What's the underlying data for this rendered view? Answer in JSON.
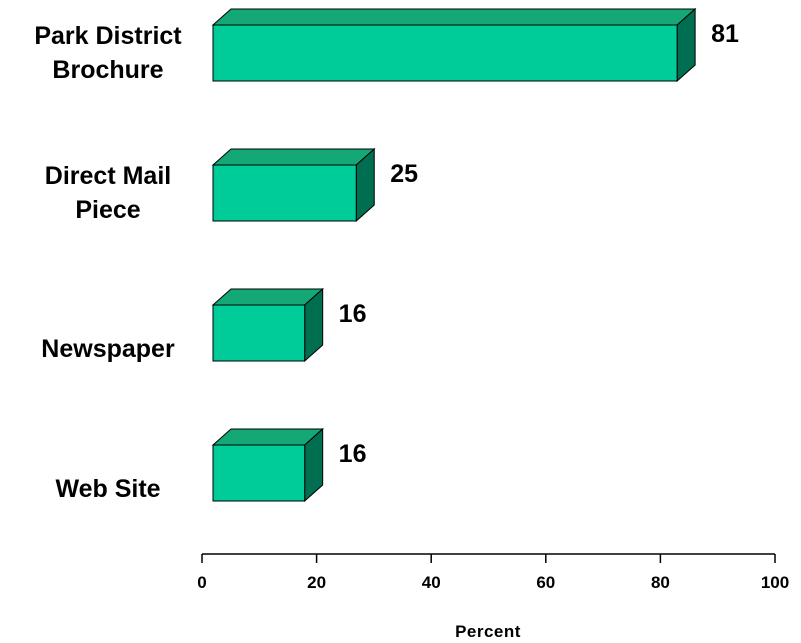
{
  "chart_data": {
    "type": "bar",
    "orientation": "horizontal",
    "style": "3d",
    "categories": [
      [
        "Park District",
        "Brochure"
      ],
      [
        "Direct Mail",
        "Piece"
      ],
      [
        "Newspaper"
      ],
      [
        "Web Site"
      ]
    ],
    "values": [
      81,
      25,
      16,
      16
    ],
    "value_labels": [
      "81",
      "25",
      "16",
      "16"
    ],
    "xlabel": "Percent",
    "xlim": [
      0,
      100
    ],
    "xticks": [
      0,
      20,
      40,
      60,
      80,
      100
    ],
    "xtick_labels": [
      "0",
      "20",
      "40",
      "60",
      "80",
      "100"
    ],
    "grid": false,
    "legend": "none",
    "colors": {
      "front": "#00CC99",
      "top": "#14A877",
      "side": "#006E50",
      "outline": "#000000"
    }
  }
}
